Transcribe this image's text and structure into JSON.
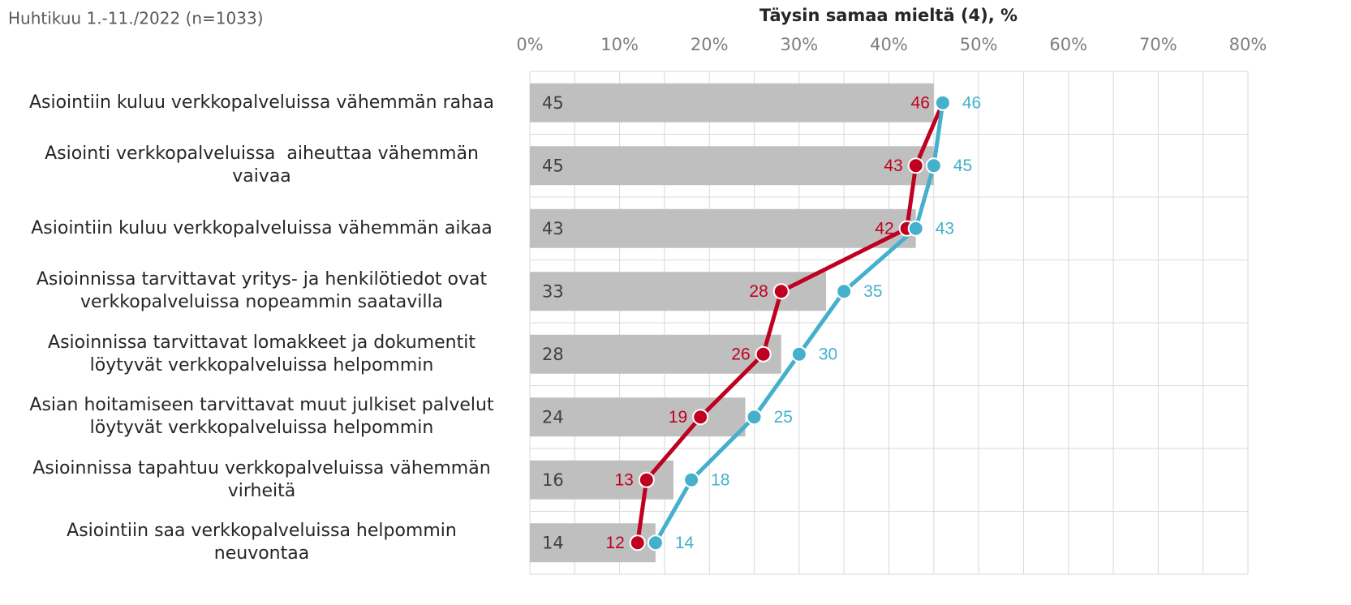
{
  "chart_data": {
    "type": "bar",
    "orientation": "horizontal",
    "subtitle": "Huhtikuu 1.-11./2022 (n=1033)",
    "xlabel": "Täysin samaa mieltä (4), %",
    "categories": [
      "Asiointiin kuluu verkkopalveluissa vähemmän rahaa",
      "Asiointi verkkopalveluissa  aiheuttaa vähemmän\nvaivaa",
      "Asiointiin kuluu verkkopalveluissa vähemmän aikaa",
      "Asioinnissa tarvittavat yritys- ja henkilötiedot ovat\nverkkopalveluissa nopeammin saatavilla",
      "Asioinnissa tarvittavat lomakkeet ja dokumentit\nlöytyvät verkkopalveluissa helpommin",
      "Asian hoitamiseen tarvittavat muut julkiset palvelut\nlöytyvät verkkopalveluissa helpommin",
      "Asioinnissa tapahtuu verkkopalveluissa vähemmän\nvirheitä",
      "Asiointiin saa verkkopalveluissa helpommin\nneuvontaa"
    ],
    "bars": {
      "color": "#bfbfbf",
      "values": [
        45,
        45,
        43,
        33,
        28,
        24,
        16,
        14
      ]
    },
    "series": [
      {
        "color": "#c00020",
        "values": [
          46,
          43,
          42,
          28,
          26,
          19,
          13,
          12
        ]
      },
      {
        "color": "#45b0cc",
        "values": [
          46,
          45,
          43,
          35,
          30,
          25,
          18,
          14
        ]
      }
    ],
    "xlim": [
      0,
      80
    ],
    "xticks": [
      {
        "value": 0,
        "label": "0%"
      },
      {
        "value": 10,
        "label": "10%"
      },
      {
        "value": 20,
        "label": "20%"
      },
      {
        "value": 30,
        "label": "30%"
      },
      {
        "value": 40,
        "label": "40%"
      },
      {
        "value": 50,
        "label": "50%"
      },
      {
        "value": 60,
        "label": "60%"
      },
      {
        "value": 70,
        "label": "70%"
      },
      {
        "value": 80,
        "label": "80%"
      }
    ],
    "xminorticks": [
      5,
      15,
      25,
      35,
      45,
      55,
      65,
      75
    ],
    "grid": true
  }
}
